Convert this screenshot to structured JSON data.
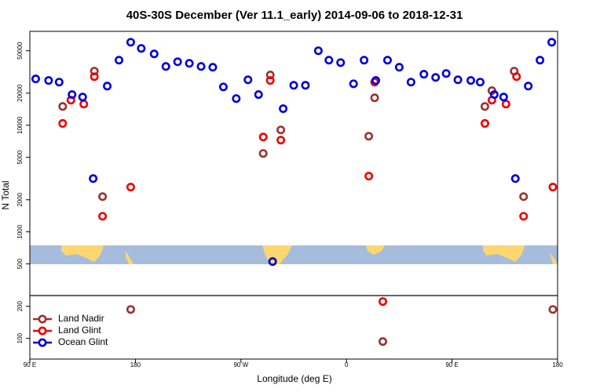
{
  "chart_data": {
    "type": "scatter",
    "title": "40S-30S December (Ver 11.1_early)   2014-09-06 to 2018-12-31",
    "x_label": "Longitude (deg E)",
    "y_label": "N Total",
    "xlim": [
      90,
      540
    ],
    "xticks": [
      {
        "value": 90,
        "label": "90 E"
      },
      {
        "value": 180,
        "label": "180"
      },
      {
        "value": 270,
        "label": "90 W"
      },
      {
        "value": 360,
        "label": "0"
      },
      {
        "value": 450,
        "label": "90 E"
      },
      {
        "value": 540,
        "label": "180"
      }
    ],
    "ylim": [
      64,
      76000
    ],
    "log_y": true,
    "yticks": [
      100,
      200,
      500,
      1000,
      2000,
      5000,
      10000,
      20000,
      50000
    ],
    "legend": "lower left",
    "series": [
      {
        "name": "Land Nadir",
        "color": "#993333",
        "x": [
          118,
          145,
          152,
          176,
          295,
          304,
          289,
          384,
          379,
          391,
          478,
          484,
          503,
          511,
          536
        ],
        "values": [
          15000,
          32200,
          2140,
          187,
          29600,
          9040,
          5440,
          18100,
          7890,
          93.5,
          15000,
          21100,
          32200,
          2140,
          187
        ]
      },
      {
        "name": "Land Glint",
        "color": "#ee0000",
        "x": [
          118,
          125,
          136,
          145,
          152,
          176,
          289,
          295,
          304,
          379,
          384,
          391,
          478,
          484,
          496,
          505,
          511,
          536
        ],
        "values": [
          10400,
          17200,
          15800,
          28600,
          1400,
          2630,
          7760,
          26300,
          7250,
          3330,
          25400,
          222,
          10400,
          17200,
          15800,
          28600,
          1400,
          2630
        ]
      },
      {
        "name": "Ocean Glint",
        "color": "#0000dd",
        "x": [
          95,
          106,
          115,
          126,
          135,
          144,
          156,
          166,
          176,
          185,
          196,
          206,
          216,
          226,
          236,
          246,
          255,
          266,
          276,
          285,
          297,
          306,
          315,
          325,
          336,
          345,
          355,
          366,
          375,
          385,
          395,
          405,
          415,
          426,
          436,
          445,
          455,
          466,
          474,
          486,
          494,
          504,
          515,
          525,
          535
        ],
        "values": [
          27200,
          26300,
          25400,
          19400,
          18400,
          3160,
          23300,
          40800,
          60100,
          52600,
          46700,
          35600,
          39400,
          38100,
          35600,
          35000,
          22900,
          17800,
          26700,
          19400,
          526,
          14300,
          23700,
          23700,
          50000,
          40800,
          38700,
          24500,
          40800,
          26300,
          40800,
          35000,
          25400,
          30100,
          28100,
          30600,
          26700,
          26300,
          25400,
          19400,
          18400,
          3160,
          23300,
          40800,
          60100
        ]
      }
    ]
  }
}
